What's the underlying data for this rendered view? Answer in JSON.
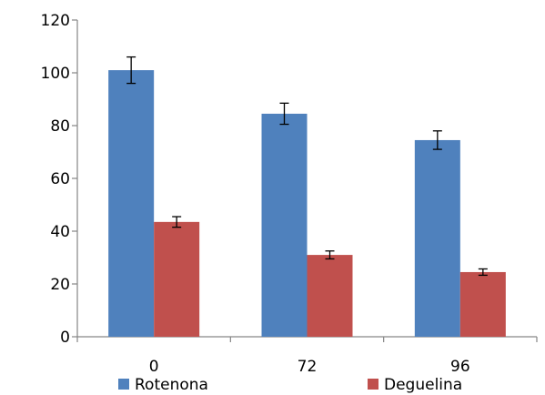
{
  "chart_data": {
    "type": "bar",
    "categories": [
      "0",
      "72",
      "96"
    ],
    "series": [
      {
        "name": "Rotenona",
        "values": [
          101,
          84.5,
          74.5
        ],
        "errors": [
          5,
          4,
          3.5
        ],
        "color": "#4F81BD"
      },
      {
        "name": "Deguelina",
        "values": [
          43.5,
          31,
          24.5
        ],
        "errors": [
          2,
          1.5,
          1.2
        ],
        "color": "#C0504D"
      }
    ],
    "ylim": [
      0,
      120
    ],
    "yticks": [
      "0",
      "20",
      "40",
      "60",
      "80",
      "100",
      "120"
    ],
    "title": "",
    "xlabel": "",
    "ylabel": "",
    "grid": false,
    "legend_position": "bottom"
  }
}
